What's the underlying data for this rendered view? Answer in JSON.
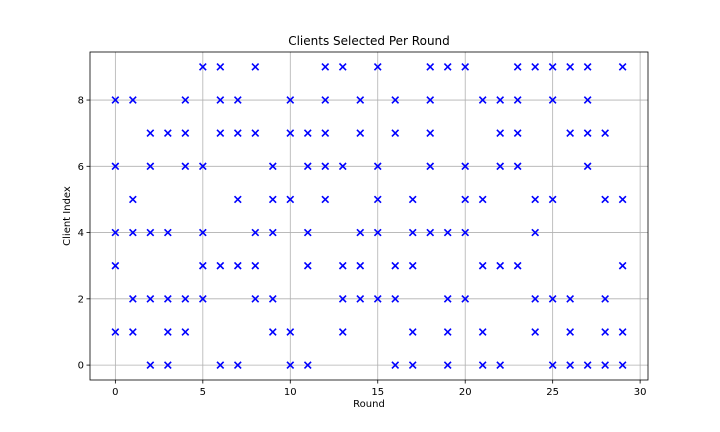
{
  "chart_data": {
    "type": "scatter",
    "title": "Clients Selected Per Round",
    "xlabel": "Round",
    "ylabel": "Client Index",
    "xlim": [
      -1.45,
      30.45
    ],
    "ylim": [
      -0.45,
      9.45
    ],
    "xticks": [
      0,
      5,
      10,
      15,
      20,
      25,
      30
    ],
    "yticks": [
      0,
      2,
      4,
      6,
      8
    ],
    "grid": true,
    "marker": "x",
    "color": "#0000ff",
    "rounds": [
      {
        "round": 0,
        "clients": [
          1,
          3,
          4,
          6,
          8
        ]
      },
      {
        "round": 1,
        "clients": [
          1,
          2,
          4,
          5,
          8
        ]
      },
      {
        "round": 2,
        "clients": [
          0,
          2,
          4,
          6,
          7
        ]
      },
      {
        "round": 3,
        "clients": [
          0,
          1,
          2,
          4,
          7
        ]
      },
      {
        "round": 4,
        "clients": [
          1,
          2,
          6,
          7,
          8
        ]
      },
      {
        "round": 5,
        "clients": [
          2,
          3,
          4,
          6,
          9
        ]
      },
      {
        "round": 6,
        "clients": [
          0,
          3,
          7,
          8,
          9
        ]
      },
      {
        "round": 7,
        "clients": [
          0,
          3,
          5,
          7,
          8
        ]
      },
      {
        "round": 8,
        "clients": [
          2,
          3,
          4,
          7,
          9
        ]
      },
      {
        "round": 9,
        "clients": [
          1,
          2,
          4,
          5,
          6
        ]
      },
      {
        "round": 10,
        "clients": [
          0,
          1,
          5,
          7,
          8
        ]
      },
      {
        "round": 11,
        "clients": [
          0,
          3,
          4,
          6,
          7
        ]
      },
      {
        "round": 12,
        "clients": [
          5,
          6,
          7,
          8,
          9
        ]
      },
      {
        "round": 13,
        "clients": [
          1,
          2,
          3,
          6,
          9
        ]
      },
      {
        "round": 14,
        "clients": [
          2,
          3,
          4,
          7,
          8
        ]
      },
      {
        "round": 15,
        "clients": [
          2,
          4,
          5,
          6,
          9
        ]
      },
      {
        "round": 16,
        "clients": [
          0,
          2,
          3,
          7,
          8
        ]
      },
      {
        "round": 17,
        "clients": [
          0,
          1,
          3,
          4,
          5
        ]
      },
      {
        "round": 18,
        "clients": [
          4,
          6,
          7,
          8,
          9
        ]
      },
      {
        "round": 19,
        "clients": [
          0,
          1,
          2,
          4,
          9
        ]
      },
      {
        "round": 20,
        "clients": [
          2,
          4,
          5,
          6,
          9
        ]
      },
      {
        "round": 21,
        "clients": [
          0,
          1,
          3,
          5,
          8
        ]
      },
      {
        "round": 22,
        "clients": [
          0,
          3,
          6,
          7,
          8
        ]
      },
      {
        "round": 23,
        "clients": [
          3,
          6,
          7,
          8,
          9
        ]
      },
      {
        "round": 24,
        "clients": [
          1,
          2,
          4,
          5,
          9
        ]
      },
      {
        "round": 25,
        "clients": [
          0,
          2,
          5,
          8,
          9
        ]
      },
      {
        "round": 26,
        "clients": [
          0,
          1,
          2,
          7,
          9
        ]
      },
      {
        "round": 27,
        "clients": [
          0,
          6,
          7,
          8,
          9
        ]
      },
      {
        "round": 28,
        "clients": [
          0,
          1,
          2,
          5,
          7
        ]
      },
      {
        "round": 29,
        "clients": [
          0,
          1,
          3,
          5,
          9
        ]
      }
    ]
  }
}
